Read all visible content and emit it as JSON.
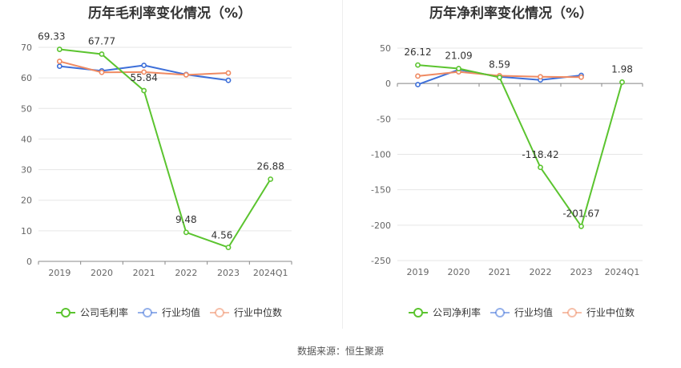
{
  "source_text": "数据来源：恒生聚源",
  "colors": {
    "company": "#5bc42f",
    "avg": "#3d6fd9",
    "median": "#ef8a62",
    "grid": "#e6e6e6",
    "axis": "#666666"
  },
  "legend_labels": [
    "公司毛利率",
    "行业均值",
    "行业中位数"
  ],
  "chart_data": [
    {
      "type": "line",
      "title": "历年毛利率变化情况（%）",
      "categories": [
        "2019",
        "2020",
        "2021",
        "2022",
        "2023",
        "2024Q1"
      ],
      "ylim": [
        0,
        70
      ],
      "yticks": [
        0,
        10,
        20,
        30,
        40,
        50,
        60,
        70
      ],
      "ytick_labels": [
        "0",
        "10",
        "20",
        "30",
        "40",
        "50",
        "60",
        "70"
      ],
      "series": [
        {
          "name": "公司毛利率",
          "color": "#5bc42f",
          "values": [
            69.33,
            67.77,
            55.84,
            9.48,
            4.56,
            26.88
          ],
          "labels": [
            "69.33",
            "67.77",
            "55.84",
            "9.48",
            "4.56",
            "26.88"
          ]
        },
        {
          "name": "行业均值",
          "color": "#3d6fd9",
          "values": [
            63.8,
            62.3,
            64.1,
            61.1,
            59.2,
            null
          ]
        },
        {
          "name": "行业中位数",
          "color": "#ef8a62",
          "values": [
            65.4,
            61.8,
            61.9,
            61.0,
            61.6,
            null
          ]
        }
      ]
    },
    {
      "type": "line",
      "title": "历年净利率变化情况（%）",
      "categories": [
        "2019",
        "2020",
        "2021",
        "2022",
        "2023",
        "2024Q1"
      ],
      "ylim": [
        -250,
        50
      ],
      "yticks": [
        -250,
        -200,
        -150,
        -100,
        -50,
        0,
        50
      ],
      "ytick_labels": [
        "-250",
        "-200",
        "-150",
        "-100",
        "-50",
        "0",
        "50"
      ],
      "series": [
        {
          "name": "公司净利率",
          "color": "#5bc42f",
          "values": [
            26.12,
            21.09,
            8.59,
            -118.42,
            -201.67,
            1.98
          ],
          "labels": [
            "26.12",
            "21.09",
            "8.59",
            "-118.42",
            "-201.67",
            "1.98"
          ]
        },
        {
          "name": "行业均值",
          "color": "#3d6fd9",
          "values": [
            -1.5,
            19.5,
            9.5,
            5.0,
            11.5,
            null
          ]
        },
        {
          "name": "行业中位数",
          "color": "#ef8a62",
          "values": [
            10.5,
            16.5,
            11.0,
            9.5,
            9.0,
            null
          ]
        }
      ]
    }
  ]
}
